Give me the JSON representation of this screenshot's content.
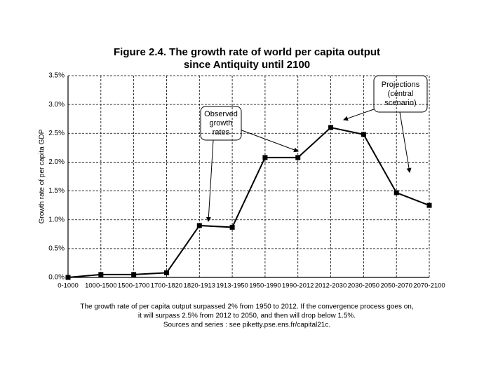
{
  "chart_data": {
    "type": "line",
    "title": [
      "Figure 2.4. The growth rate of world per capita output",
      "since Antiquity until 2100"
    ],
    "y_label": "Growth rate of per capita GDP",
    "categories": [
      "0-1000",
      "1000-1500",
      "1500-1700",
      "1700-1820",
      "1820-1913",
      "1913-1950",
      "1950-1990",
      "1990-2012",
      "2012-2030",
      "2030-2050",
      "2050-2070",
      "2070-2100"
    ],
    "values": [
      0,
      0.05,
      0.05,
      0.08,
      0.9,
      0.87,
      2.08,
      2.08,
      2.6,
      2.48,
      1.47,
      1.25
    ],
    "color": "#000000",
    "ylim": [
      0,
      3.5
    ],
    "yticks": [
      {
        "value": 0,
        "label": "0.0%"
      },
      {
        "value": 0.5,
        "label": "0.5%"
      },
      {
        "value": 1,
        "label": "1.0%"
      },
      {
        "value": 1.5,
        "label": "1.5%"
      },
      {
        "value": 2,
        "label": "2.0%"
      },
      {
        "value": 2.5,
        "label": "2.5%"
      },
      {
        "value": 3,
        "label": "3.0%"
      },
      {
        "value": 3.5,
        "label": "3.5%"
      }
    ],
    "grid": true,
    "annotations": [
      [
        "Observed",
        "growth",
        "rates"
      ],
      [
        "Projections",
        "(central",
        "scenario)"
      ]
    ],
    "caption": [
      "The growth rate of per capita output surpassed 2% from 1950 to 2012. If the convergence process goes on,",
      "it will surpass 2.5% from 2012 to 2050, and then will drop below 1.5%.",
      "Sources and series : see piketty.pse.ens.fr/capital21c."
    ]
  }
}
